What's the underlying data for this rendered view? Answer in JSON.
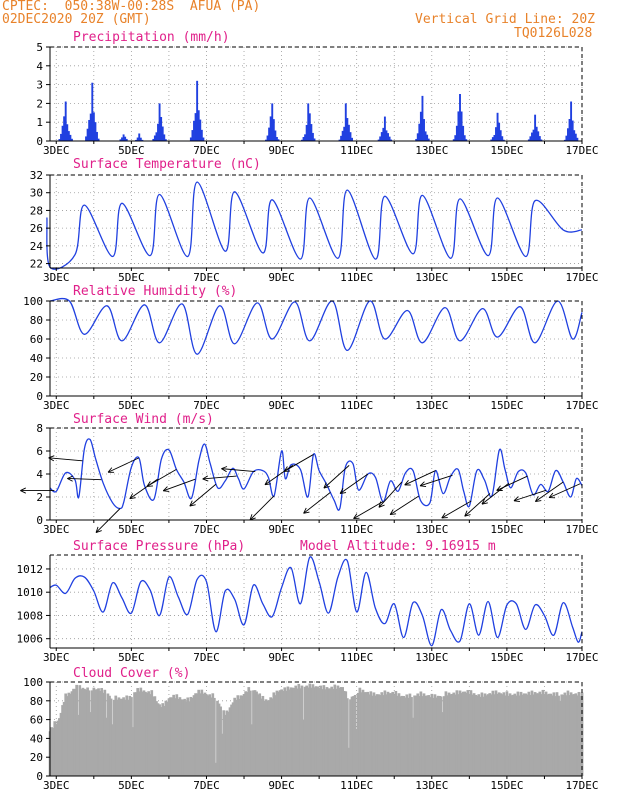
{
  "header": {
    "station": "CPTEC:  050:38W-00:28S  AFUA (PA)",
    "date": "02DEC2020 20Z (GMT)",
    "grid_note": "Vertical Grid Line: 20Z",
    "model_code": "TQ0126L028"
  },
  "colors": {
    "header": "#e8822a",
    "title": "#e0208a",
    "series": "#2040e0",
    "bars": "#2040e0",
    "cloud": "#a9a9a9",
    "arrows": "#000000"
  },
  "x_labels": [
    "3DEC",
    "5DEC",
    "7DEC",
    "9DEC",
    "11DEC",
    "13DEC",
    "15DEC",
    "17DEC"
  ],
  "chart_data": [
    {
      "id": "precip",
      "type": "bar",
      "title": "Precipitation (mm/h)",
      "ylim": [
        0,
        5
      ],
      "yticks": [
        0,
        1,
        2,
        3,
        4,
        5
      ],
      "x_range_days": [
        2.8333,
        17.0
      ],
      "grid": true,
      "events": [
        {
          "d": 3.25,
          "peak": 2.1,
          "w": 0.22
        },
        {
          "d": 3.95,
          "peak": 3.1,
          "w": 0.22
        },
        {
          "d": 4.8,
          "peak": 0.35,
          "w": 0.2
        },
        {
          "d": 5.2,
          "peak": 0.4,
          "w": 0.15
        },
        {
          "d": 5.75,
          "peak": 2.0,
          "w": 0.22
        },
        {
          "d": 6.75,
          "peak": 3.2,
          "w": 0.22
        },
        {
          "d": 8.75,
          "peak": 2.0,
          "w": 0.22
        },
        {
          "d": 9.72,
          "peak": 2.0,
          "w": 0.22
        },
        {
          "d": 10.72,
          "peak": 2.0,
          "w": 0.22
        },
        {
          "d": 11.75,
          "peak": 1.3,
          "w": 0.22
        },
        {
          "d": 12.75,
          "peak": 2.4,
          "w": 0.22
        },
        {
          "d": 13.75,
          "peak": 2.5,
          "w": 0.22
        },
        {
          "d": 14.75,
          "peak": 1.5,
          "w": 0.22
        },
        {
          "d": 15.75,
          "peak": 1.4,
          "w": 0.22
        },
        {
          "d": 16.72,
          "peak": 2.1,
          "w": 0.22
        }
      ]
    },
    {
      "id": "temp",
      "type": "line",
      "title": "Surface Temperature (nC)",
      "ylim": [
        21.5,
        32
      ],
      "yticks": [
        22,
        24,
        26,
        28,
        30,
        32
      ],
      "x_range_days": [
        2.8333,
        17.0
      ],
      "grid": true,
      "daily_max": [
        27.2,
        28.6,
        28.8,
        29.8,
        31.2,
        30.1,
        29.2,
        29.4,
        30.3,
        29.6,
        29.7,
        29.3,
        29.4,
        29.1
      ],
      "daily_min": [
        21.6,
        23.0,
        22.8,
        22.9,
        22.8,
        23.4,
        23.2,
        22.5,
        22.6,
        22.5,
        23.1,
        22.6,
        22.9,
        22.8,
        25.8
      ]
    },
    {
      "id": "rh",
      "type": "line",
      "title": "Relative Humidity (%)",
      "ylim": [
        0,
        100
      ],
      "yticks": [
        0,
        20,
        40,
        60,
        80,
        100
      ],
      "x_range_days": [
        2.8333,
        17.0
      ],
      "grid": true,
      "daily_min": [
        78,
        65,
        58,
        56,
        44,
        55,
        60,
        58,
        48,
        60,
        56,
        58,
        62,
        56,
        60
      ],
      "night_max": [
        100,
        95,
        96,
        97,
        95,
        98,
        99,
        100,
        100,
        90,
        93,
        92,
        94,
        100,
        95
      ]
    },
    {
      "id": "wind",
      "type": "line",
      "title": "Surface Wind (m/s)",
      "ylim": [
        0,
        8
      ],
      "yticks": [
        0,
        2,
        4,
        6,
        8
      ],
      "x_range_days": [
        2.8333,
        17.0
      ],
      "grid": true,
      "speed_series": [
        [
          2.83,
          2.8
        ],
        [
          3.0,
          2.5
        ],
        [
          3.25,
          4.1
        ],
        [
          3.5,
          3.5
        ],
        [
          3.6,
          2.0
        ],
        [
          3.75,
          6.2
        ],
        [
          3.9,
          7.0
        ],
        [
          4.05,
          5.3
        ],
        [
          4.25,
          3.2
        ],
        [
          4.5,
          1.5
        ],
        [
          4.7,
          1.0
        ],
        [
          4.8,
          1.6
        ],
        [
          5.0,
          4.6
        ],
        [
          5.2,
          5.4
        ],
        [
          5.35,
          3.0
        ],
        [
          5.6,
          1.8
        ],
        [
          5.8,
          5.3
        ],
        [
          6.0,
          6.1
        ],
        [
          6.2,
          4.4
        ],
        [
          6.4,
          3.3
        ],
        [
          6.6,
          1.9
        ],
        [
          6.8,
          5.2
        ],
        [
          6.95,
          6.6
        ],
        [
          7.1,
          4.9
        ],
        [
          7.3,
          2.8
        ],
        [
          7.5,
          3.4
        ],
        [
          7.7,
          4.5
        ],
        [
          7.85,
          3.6
        ],
        [
          8.0,
          2.7
        ],
        [
          8.25,
          4.2
        ],
        [
          8.5,
          4.3
        ],
        [
          8.65,
          3.7
        ],
        [
          8.8,
          2.1
        ],
        [
          9.0,
          6.0
        ],
        [
          9.1,
          3.6
        ],
        [
          9.25,
          4.8
        ],
        [
          9.5,
          4.4
        ],
        [
          9.7,
          2.0
        ],
        [
          9.85,
          5.7
        ],
        [
          10.0,
          4.3
        ],
        [
          10.2,
          3.1
        ],
        [
          10.4,
          1.7
        ],
        [
          10.55,
          1.0
        ],
        [
          10.7,
          4.6
        ],
        [
          10.9,
          4.9
        ],
        [
          11.05,
          2.6
        ],
        [
          11.3,
          4.0
        ],
        [
          11.5,
          3.7
        ],
        [
          11.7,
          1.6
        ],
        [
          11.9,
          3.4
        ],
        [
          12.1,
          2.5
        ],
        [
          12.3,
          4.1
        ],
        [
          12.5,
          4.3
        ],
        [
          12.7,
          1.7
        ],
        [
          12.95,
          1.5
        ],
        [
          13.1,
          4.3
        ],
        [
          13.3,
          2.3
        ],
        [
          13.5,
          3.8
        ],
        [
          13.7,
          4.4
        ],
        [
          13.85,
          2.5
        ],
        [
          14.0,
          1.2
        ],
        [
          14.2,
          4.3
        ],
        [
          14.4,
          3.5
        ],
        [
          14.6,
          2.1
        ],
        [
          14.8,
          6.1
        ],
        [
          14.95,
          4.4
        ],
        [
          15.1,
          2.8
        ],
        [
          15.3,
          4.2
        ],
        [
          15.5,
          4.1
        ],
        [
          15.7,
          2.2
        ],
        [
          15.9,
          3.1
        ],
        [
          16.1,
          2.5
        ],
        [
          16.3,
          4.3
        ],
        [
          16.5,
          3.3
        ],
        [
          16.7,
          2.0
        ],
        [
          16.85,
          3.6
        ],
        [
          17.0,
          3.0
        ]
      ],
      "vectors": [
        [
          2.95,
          180
        ],
        [
          3.7,
          175
        ],
        [
          4.2,
          178
        ],
        [
          4.7,
          225
        ],
        [
          5.2,
          205
        ],
        [
          5.7,
          215
        ],
        [
          6.2,
          210
        ],
        [
          6.7,
          200
        ],
        [
          7.25,
          220
        ],
        [
          7.8,
          185
        ],
        [
          8.3,
          175
        ],
        [
          8.8,
          225
        ],
        [
          9.3,
          215
        ],
        [
          9.85,
          210
        ],
        [
          10.3,
          218
        ],
        [
          10.8,
          222
        ],
        [
          11.3,
          215
        ],
        [
          11.7,
          210
        ],
        [
          12.2,
          228
        ],
        [
          12.65,
          213
        ],
        [
          13.1,
          205
        ],
        [
          13.55,
          198
        ],
        [
          14.05,
          210
        ],
        [
          14.55,
          222
        ],
        [
          15.05,
          218
        ],
        [
          15.55,
          205
        ],
        [
          16.05,
          198
        ],
        [
          16.5,
          215
        ],
        [
          16.95,
          204
        ]
      ]
    },
    {
      "id": "pres",
      "type": "line",
      "title": "Surface Pressure (hPa)",
      "title_right": "Model Altitude: 9.16915 m",
      "ylim": [
        1005.2,
        1013.2
      ],
      "yticks": [
        1006,
        1008,
        1010,
        1012
      ],
      "x_range_days": [
        2.8333,
        17.0
      ],
      "grid": true,
      "series": [
        [
          2.83,
          1010.4
        ],
        [
          3.0,
          1010.6
        ],
        [
          3.25,
          1009.9
        ],
        [
          3.5,
          1011.2
        ],
        [
          3.75,
          1011.3
        ],
        [
          4.0,
          1010.1
        ],
        [
          4.25,
          1008.3
        ],
        [
          4.5,
          1010.8
        ],
        [
          4.75,
          1009.5
        ],
        [
          5.0,
          1008.2
        ],
        [
          5.25,
          1010.9
        ],
        [
          5.5,
          1010.2
        ],
        [
          5.75,
          1008.0
        ],
        [
          6.0,
          1011.3
        ],
        [
          6.25,
          1009.6
        ],
        [
          6.5,
          1008.1
        ],
        [
          6.75,
          1011.1
        ],
        [
          7.0,
          1010.9
        ],
        [
          7.25,
          1006.6
        ],
        [
          7.5,
          1010.1
        ],
        [
          7.75,
          1009.4
        ],
        [
          8.0,
          1007.2
        ],
        [
          8.25,
          1010.6
        ],
        [
          8.5,
          1009.0
        ],
        [
          8.75,
          1007.9
        ],
        [
          9.0,
          1010.4
        ],
        [
          9.25,
          1012.1
        ],
        [
          9.5,
          1009.0
        ],
        [
          9.75,
          1013.0
        ],
        [
          10.0,
          1010.9
        ],
        [
          10.25,
          1008.2
        ],
        [
          10.5,
          1011.3
        ],
        [
          10.75,
          1012.7
        ],
        [
          11.0,
          1008.3
        ],
        [
          11.25,
          1011.7
        ],
        [
          11.5,
          1008.6
        ],
        [
          11.75,
          1007.3
        ],
        [
          12.0,
          1009.0
        ],
        [
          12.25,
          1006.1
        ],
        [
          12.5,
          1009.1
        ],
        [
          12.75,
          1008.0
        ],
        [
          13.0,
          1005.4
        ],
        [
          13.25,
          1008.5
        ],
        [
          13.5,
          1006.7
        ],
        [
          13.75,
          1005.8
        ],
        [
          14.0,
          1009.0
        ],
        [
          14.25,
          1006.3
        ],
        [
          14.5,
          1009.2
        ],
        [
          14.75,
          1006.1
        ],
        [
          15.0,
          1008.9
        ],
        [
          15.25,
          1009.0
        ],
        [
          15.5,
          1006.8
        ],
        [
          15.75,
          1008.9
        ],
        [
          16.0,
          1008.0
        ],
        [
          16.25,
          1006.3
        ],
        [
          16.5,
          1009.1
        ],
        [
          16.75,
          1007.0
        ],
        [
          16.9,
          1005.7
        ],
        [
          17.0,
          1006.6
        ]
      ]
    },
    {
      "id": "cloud",
      "type": "area",
      "title": "Cloud Cover (%)",
      "ylim": [
        0,
        100
      ],
      "yticks": [
        0,
        20,
        40,
        60,
        80,
        100
      ],
      "x_range_days": [
        2.8333,
        17.0
      ],
      "grid": true,
      "series": [
        [
          2.83,
          52
        ],
        [
          3.0,
          60
        ],
        [
          3.3,
          90
        ],
        [
          3.55,
          98
        ],
        [
          3.8,
          96
        ],
        [
          4.1,
          96
        ],
        [
          4.3,
          93
        ],
        [
          4.5,
          86
        ],
        [
          4.9,
          86
        ],
        [
          5.2,
          95
        ],
        [
          5.5,
          92
        ],
        [
          5.8,
          78
        ],
        [
          6.1,
          88
        ],
        [
          6.5,
          84
        ],
        [
          6.8,
          93
        ],
        [
          7.2,
          88
        ],
        [
          7.5,
          70
        ],
        [
          7.8,
          86
        ],
        [
          8.2,
          96
        ],
        [
          8.6,
          84
        ],
        [
          9.0,
          95
        ],
        [
          9.4,
          98
        ],
        [
          9.8,
          99
        ],
        [
          10.2,
          97
        ],
        [
          10.6,
          98
        ],
        [
          10.8,
          86
        ],
        [
          11.1,
          94
        ],
        [
          11.5,
          90
        ],
        [
          11.9,
          92
        ],
        [
          12.3,
          88
        ],
        [
          12.7,
          90
        ],
        [
          13.1,
          88
        ],
        [
          13.5,
          91
        ],
        [
          13.9,
          93
        ],
        [
          14.3,
          89
        ],
        [
          14.7,
          92
        ],
        [
          15.1,
          90
        ],
        [
          15.5,
          91
        ],
        [
          15.9,
          92
        ],
        [
          16.3,
          90
        ],
        [
          16.7,
          91
        ],
        [
          17.0,
          90
        ]
      ],
      "dips": [
        [
          3.6,
          65
        ],
        [
          3.9,
          68
        ],
        [
          4.35,
          62
        ],
        [
          4.5,
          55
        ],
        [
          5.05,
          52
        ],
        [
          7.25,
          14
        ],
        [
          7.4,
          45
        ],
        [
          8.2,
          55
        ],
        [
          9.6,
          60
        ],
        [
          10.8,
          30
        ],
        [
          11.0,
          50
        ],
        [
          12.5,
          62
        ],
        [
          13.3,
          68
        ],
        [
          16.4,
          80
        ]
      ]
    }
  ]
}
